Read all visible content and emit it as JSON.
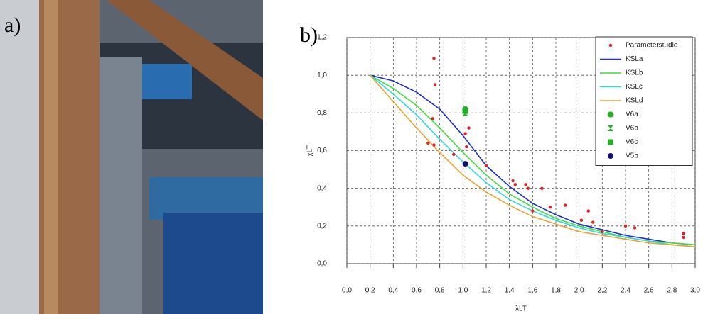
{
  "panel_labels": [
    "a)",
    "b)"
  ],
  "chart_data": {
    "type": "line",
    "xlabel": "λLT",
    "ylabel": "χLT",
    "x": [
      0.2,
      0.4,
      0.6,
      0.8,
      1.0,
      1.2,
      1.4,
      1.6,
      1.8,
      2.0,
      2.2,
      2.4,
      2.6,
      2.8,
      3.0
    ],
    "series": [
      {
        "name": "KSLa",
        "color": "#1f2fd0",
        "values": [
          1.0,
          0.97,
          0.91,
          0.82,
          0.68,
          0.52,
          0.41,
          0.32,
          0.26,
          0.21,
          0.18,
          0.15,
          0.13,
          0.11,
          0.1
        ]
      },
      {
        "name": "KSLb",
        "color": "#3ddc3d",
        "values": [
          1.0,
          0.93,
          0.84,
          0.72,
          0.59,
          0.47,
          0.37,
          0.3,
          0.24,
          0.2,
          0.17,
          0.14,
          0.12,
          0.11,
          0.1
        ]
      },
      {
        "name": "KSLc",
        "color": "#30d8e0",
        "values": [
          1.0,
          0.9,
          0.79,
          0.66,
          0.54,
          0.43,
          0.34,
          0.28,
          0.23,
          0.19,
          0.16,
          0.14,
          0.12,
          0.1,
          0.09
        ]
      },
      {
        "name": "KSLd",
        "color": "#f0a030",
        "values": [
          1.0,
          0.86,
          0.72,
          0.59,
          0.47,
          0.38,
          0.31,
          0.25,
          0.21,
          0.17,
          0.15,
          0.13,
          0.11,
          0.1,
          0.09
        ]
      }
    ],
    "points": [
      {
        "name": "Parameterstudie",
        "color": "#e02020",
        "marker": "dot",
        "x": [
          0.75,
          0.76,
          0.74,
          0.7,
          0.75,
          0.92,
          1.02,
          1.05,
          1.03,
          1.2,
          1.43,
          1.45,
          1.54,
          1.56,
          1.68,
          1.6,
          1.75,
          1.88,
          2.02,
          2.08,
          2.12,
          2.2,
          2.4,
          2.48,
          2.9,
          2.9
        ],
        "values": [
          1.09,
          0.95,
          0.77,
          0.64,
          0.63,
          0.58,
          0.69,
          0.72,
          0.62,
          0.52,
          0.44,
          0.42,
          0.42,
          0.4,
          0.4,
          0.28,
          0.3,
          0.31,
          0.23,
          0.28,
          0.22,
          0.17,
          0.2,
          0.19,
          0.16,
          0.14
        ]
      },
      {
        "name": "V6a",
        "color": "#20b020",
        "marker": "hexagon",
        "x": [
          1.02
        ],
        "values": [
          0.82
        ]
      },
      {
        "name": "V6b",
        "color": "#20b020",
        "marker": "hourglass",
        "x": [
          1.02
        ],
        "values": [
          0.8
        ]
      },
      {
        "name": "V6c",
        "color": "#20b020",
        "marker": "square",
        "x": [
          1.02
        ],
        "values": [
          0.81
        ]
      },
      {
        "name": "V5b",
        "color": "#10107a",
        "marker": "circle",
        "x": [
          1.02
        ],
        "values": [
          0.53
        ]
      }
    ],
    "xlim": [
      0,
      3
    ],
    "ylim": [
      0,
      1.2
    ],
    "xticks": [
      {
        "value": 0,
        "label": "0,0"
      },
      {
        "value": 0.2,
        "label": "0,2"
      },
      {
        "value": 0.4,
        "label": "0,4"
      },
      {
        "value": 0.6,
        "label": "0,6"
      },
      {
        "value": 0.8,
        "label": "0,8"
      },
      {
        "value": 1.0,
        "label": "1,0"
      },
      {
        "value": 1.2,
        "label": "1,2"
      },
      {
        "value": 1.4,
        "label": "1,4"
      },
      {
        "value": 1.6,
        "label": "1,6"
      },
      {
        "value": 1.8,
        "label": "1,8"
      },
      {
        "value": 2.0,
        "label": "2,0"
      },
      {
        "value": 2.2,
        "label": "2,2"
      },
      {
        "value": 2.4,
        "label": "2,4"
      },
      {
        "value": 2.6,
        "label": "2,6"
      },
      {
        "value": 2.8,
        "label": "2,8"
      },
      {
        "value": 3.0,
        "label": "3,0"
      }
    ],
    "yticks": [
      {
        "value": 0,
        "label": "0,0"
      },
      {
        "value": 0.2,
        "label": "0,2"
      },
      {
        "value": 0.4,
        "label": "0,4"
      },
      {
        "value": 0.6,
        "label": "0,6"
      },
      {
        "value": 0.8,
        "label": "0,8"
      },
      {
        "value": 1.0,
        "label": "1,0"
      },
      {
        "value": 1.2,
        "label": "1,2"
      }
    ],
    "grid": true
  }
}
